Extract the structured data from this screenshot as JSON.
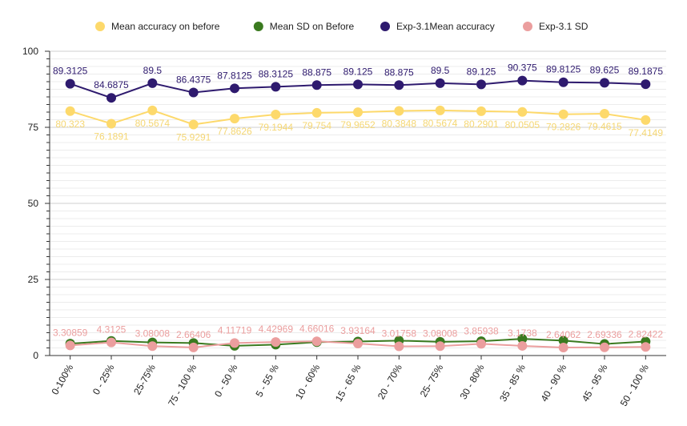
{
  "chart_data": {
    "type": "line",
    "categories": [
      "0-100%",
      "0 - 25%",
      "25-75%",
      "75 - 100 %",
      "0 - 50 %",
      "5 - 55 %",
      "10 - 60%",
      "15 - 65 %",
      "20 - 70%",
      "25- 75%",
      "30 - 80%",
      "35 - 85 %",
      "40 - 90 %",
      "45 - 95 %",
      "50 - 100 %"
    ],
    "ylim": [
      0,
      100
    ],
    "yticks": [
      0,
      25,
      50,
      75,
      100
    ],
    "grid": true,
    "legend_position": "top",
    "series": [
      {
        "name": "Mean accuracy on before",
        "color": "#fdd96b",
        "label_color": "#f5d774",
        "label_position": "below",
        "values": [
          80.323,
          76.1891,
          80.5674,
          75.9291,
          77.8626,
          79.1944,
          79.754,
          79.9652,
          80.3848,
          80.5674,
          80.2901,
          80.0505,
          79.2826,
          79.4615,
          77.4149
        ],
        "labels": [
          "80.323",
          "76.1891",
          "80.5674",
          "75.9291",
          "77.8626",
          "79.1944",
          "79.754",
          "79.9652",
          "80.3848",
          "80.5674",
          "80.2901",
          "80.0505",
          "79.2826",
          "79.4615",
          "77.4149"
        ]
      },
      {
        "name": "Mean SD on Before",
        "color": "#3a7a1f",
        "values": [
          3.9,
          4.8,
          4.3,
          4.1,
          3.2,
          3.6,
          4.4,
          4.6,
          4.9,
          4.5,
          4.7,
          5.5,
          4.9,
          3.8,
          4.6
        ]
      },
      {
        "name": "Exp-3.1Mean accuracy",
        "color": "#2e1a6e",
        "label_color": "#2e1a6e",
        "label_position": "above",
        "values": [
          89.3125,
          84.6875,
          89.5,
          86.4375,
          87.8125,
          88.3125,
          88.875,
          89.125,
          88.875,
          89.5,
          89.125,
          90.375,
          89.8125,
          89.625,
          89.1875
        ],
        "labels": [
          "89.3125",
          "84.6875",
          "89.5",
          "86.4375",
          "87.8125",
          "88.3125",
          "88.875",
          "89.125",
          "88.875",
          "89.5",
          "89.125",
          "90.375",
          "89.8125",
          "89.625",
          "89.1875"
        ]
      },
      {
        "name": "Exp-3.1 SD",
        "color": "#eb9e9e",
        "label_color": "#eb9e9e",
        "label_position": "above",
        "values": [
          3.30859,
          4.3125,
          3.08008,
          2.66406,
          4.11719,
          4.42969,
          4.66016,
          3.93164,
          3.01758,
          3.08008,
          3.85938,
          3.1738,
          2.64062,
          2.69336,
          2.82422
        ],
        "labels": [
          "3.30859",
          "4.3125",
          "3.08008",
          "2.66406",
          "4.11719",
          "4.42969",
          "4.66016",
          "3.93164",
          "3.01758",
          "3.08008",
          "3.85938",
          "3.1738",
          "2.64062",
          "2.69336",
          "2.82422"
        ]
      }
    ]
  }
}
